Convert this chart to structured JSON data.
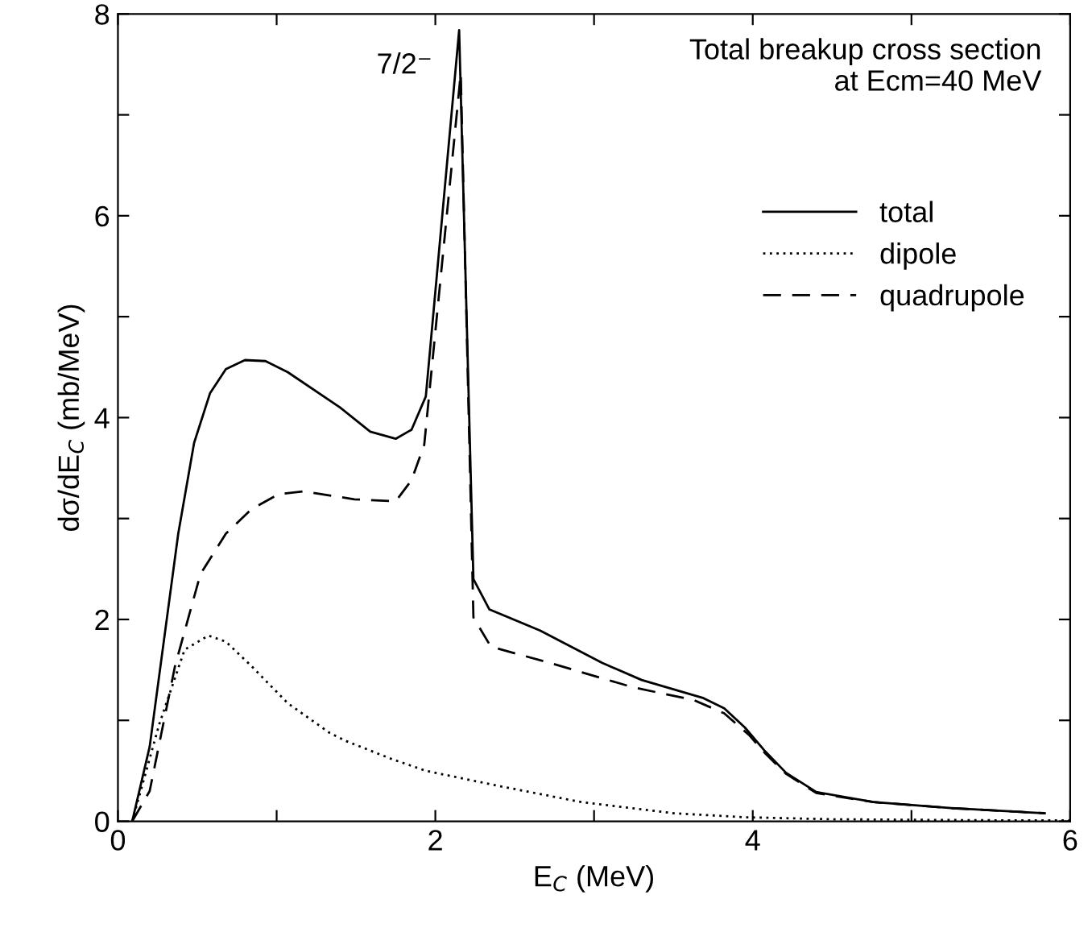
{
  "chart_data": {
    "type": "line",
    "xlabel": "E$_{C}$ (MeV)",
    "ylabel": "dσ/dE$_{C}$ (mb/MeV)",
    "annotations": [
      "Total breakup cross section\n   at Ecm=40 MeV",
      {
        "text": "7/2⁻",
        "x": 2.15,
        "y": 7.84
      }
    ],
    "xlim": [
      0,
      6
    ],
    "ylim": [
      0,
      8
    ],
    "xticks": [
      0,
      {
        "value": 1,
        "label": null
      },
      2,
      {
        "value": 3,
        "label": null
      },
      4,
      {
        "value": 5,
        "label": null
      },
      6
    ],
    "yticks": [
      0,
      {
        "value": 1,
        "label": null
      },
      2,
      {
        "value": 3,
        "label": null
      },
      4,
      {
        "value": 5,
        "label": null
      },
      6,
      {
        "value": 7,
        "label": null
      },
      8
    ],
    "grid": false,
    "legend": "right",
    "marker": "none",
    "series": [
      {
        "name": "total",
        "color": "#000000",
        "line_style": "solid",
        "x": [
          0.09,
          0.2,
          0.38,
          0.48,
          0.58,
          0.68,
          0.8,
          0.93,
          1.07,
          1.4,
          1.59,
          1.75,
          1.85,
          1.94,
          2.15,
          2.24,
          2.34,
          2.66,
          3.05,
          3.3,
          3.69,
          3.82,
          3.95,
          4.08,
          4.21,
          4.4,
          4.76,
          5.25,
          5.84
        ],
        "values": [
          0,
          0.74,
          2.85,
          3.75,
          4.24,
          4.48,
          4.57,
          4.56,
          4.45,
          4.1,
          3.86,
          3.79,
          3.88,
          4.21,
          7.84,
          2.4,
          2.1,
          1.89,
          1.57,
          1.4,
          1.22,
          1.12,
          0.93,
          0.69,
          0.48,
          0.29,
          0.19,
          0.13,
          0.08
        ]
      },
      {
        "name": "dipole",
        "color": "#000000",
        "line_style": "dotted",
        "x": [
          0.09,
          0.26,
          0.42,
          0.57,
          0.68,
          0.84,
          1.07,
          1.33,
          1.43,
          1.72,
          1.94,
          2.4,
          2.92,
          3.5,
          3.95,
          4.5,
          5.5,
          6.0
        ],
        "values": [
          0,
          0.96,
          1.7,
          1.84,
          1.78,
          1.54,
          1.17,
          0.88,
          0.8,
          0.62,
          0.5,
          0.35,
          0.19,
          0.08,
          0.04,
          0.02,
          0.01,
          0.01
        ]
      },
      {
        "name": "quadrupole",
        "color": "#000000",
        "line_style": "dashed",
        "x": [
          0.09,
          0.2,
          0.36,
          0.52,
          0.68,
          0.84,
          1.01,
          1.17,
          1.49,
          1.75,
          1.85,
          1.93,
          2.16,
          2.24,
          2.35,
          2.72,
          3.24,
          3.63,
          3.82,
          3.98,
          4.08,
          4.21,
          4.4,
          4.76,
          5.25,
          5.84
        ],
        "values": [
          0,
          0.3,
          1.54,
          2.45,
          2.85,
          3.09,
          3.24,
          3.27,
          3.19,
          3.17,
          3.38,
          3.73,
          7.41,
          2.02,
          1.73,
          1.57,
          1.33,
          1.2,
          1.07,
          0.85,
          0.67,
          0.47,
          0.28,
          0.19,
          0.13,
          0.08
        ]
      }
    ]
  }
}
